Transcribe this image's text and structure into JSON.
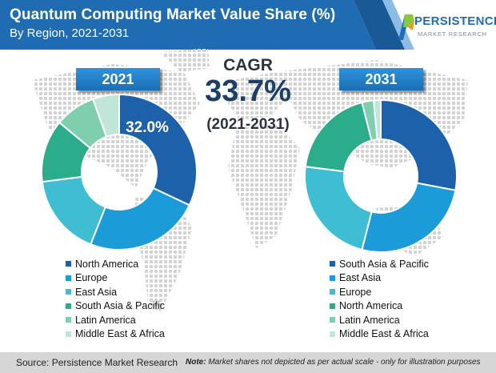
{
  "header": {
    "title": "Quantum Computing Market Value Share (%)",
    "subtitle": "By Region, 2021-2031",
    "colors": {
      "banner": "#1f6cb3",
      "banner_dark": "#195a96"
    }
  },
  "logo": {
    "name": "PERSISTENCE",
    "sub": "MARKET RESEARCH",
    "colors": [
      "#1f6db4",
      "#8cc63f",
      "#f7941d"
    ]
  },
  "cagr": {
    "label": "CAGR",
    "value": "33.7%",
    "period": "(2021-2031)"
  },
  "chart_data": [
    {
      "type": "pie",
      "year": "2021",
      "center_label": "32.0%",
      "labels": [
        "North America",
        "Europe",
        "East Asia",
        "South Asia & Pacific",
        "Latin America",
        "Middle East & Africa"
      ],
      "values": [
        32.0,
        24.0,
        17.0,
        13.0,
        8.5,
        5.5
      ],
      "colors": [
        "#1e61ab",
        "#1b9bd7",
        "#3ebdd3",
        "#2bac8a",
        "#7fcfae",
        "#bfe6d8"
      ]
    },
    {
      "type": "pie",
      "year": "2031",
      "labels": [
        "South Asia & Pacific",
        "East Asia",
        "Europe",
        "North America",
        "Latin America",
        "Middle East & Africa"
      ],
      "values": [
        28.0,
        26.0,
        23.0,
        19.0,
        2.5,
        1.5
      ],
      "colors": [
        "#1e61ab",
        "#1b9bd7",
        "#3ebdd3",
        "#2bac8a",
        "#7fcfae",
        "#bfe6d8"
      ]
    }
  ],
  "footer": {
    "source": "Source: Persistence Market Research",
    "note_label": "Note:",
    "note_text": "Market shares not depicted as per actual scale - only for illustration purposes"
  }
}
